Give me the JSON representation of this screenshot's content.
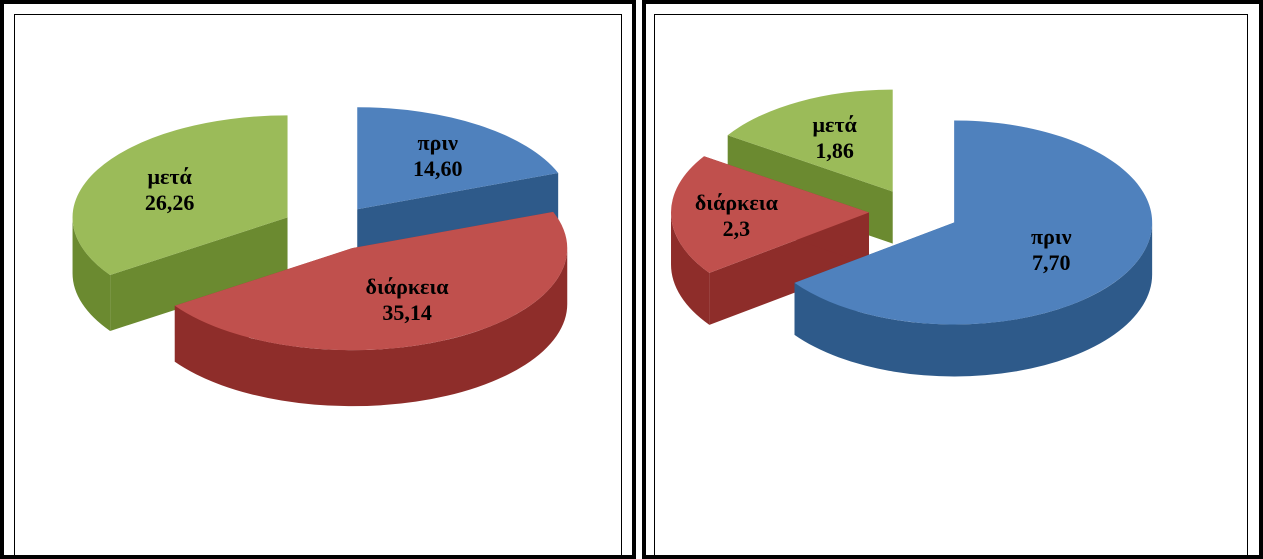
{
  "chart_data": [
    {
      "type": "pie",
      "style": "3d-exploded",
      "categories": [
        "πριν",
        "διάρκεια",
        "μετά"
      ],
      "values": [
        14.6,
        35.14,
        26.26
      ],
      "value_labels": [
        "14,60",
        "35,14",
        "26,26"
      ],
      "colors": {
        "top": [
          "#4f81bd",
          "#c0504d",
          "#9bbb59"
        ],
        "side": [
          "#2e5a8a",
          "#8e2d2a",
          "#6b8a30"
        ]
      },
      "legend": "none"
    },
    {
      "type": "pie",
      "style": "3d-exploded",
      "categories": [
        "πριν",
        "διάρκεια",
        "μετά"
      ],
      "values": [
        7.7,
        2.3,
        1.86
      ],
      "value_labels": [
        "7,70",
        "2,3",
        "1,86"
      ],
      "colors": {
        "top": [
          "#4f81bd",
          "#c0504d",
          "#9bbb59"
        ],
        "side": [
          "#2e5a8a",
          "#8e2d2a",
          "#6b8a30"
        ]
      },
      "legend": "none"
    }
  ]
}
